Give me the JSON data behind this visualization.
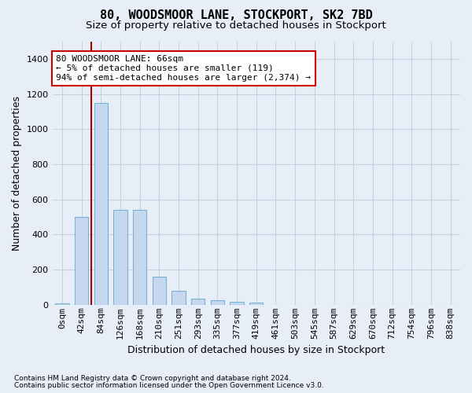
{
  "title": "80, WOODSMOOR LANE, STOCKPORT, SK2 7BD",
  "subtitle": "Size of property relative to detached houses in Stockport",
  "xlabel": "Distribution of detached houses by size in Stockport",
  "ylabel": "Number of detached properties",
  "bin_labels": [
    "0sqm",
    "42sqm",
    "84sqm",
    "126sqm",
    "168sqm",
    "210sqm",
    "251sqm",
    "293sqm",
    "335sqm",
    "377sqm",
    "419sqm",
    "461sqm",
    "503sqm",
    "545sqm",
    "587sqm",
    "629sqm",
    "670sqm",
    "712sqm",
    "754sqm",
    "796sqm",
    "838sqm"
  ],
  "bar_values": [
    10,
    500,
    1150,
    540,
    540,
    160,
    80,
    35,
    28,
    18,
    15,
    0,
    0,
    0,
    0,
    0,
    0,
    0,
    0,
    0,
    0
  ],
  "bar_color": "#c5d8f0",
  "bar_edge_color": "#7ab2d4",
  "bar_width": 0.7,
  "vline_pos": 1.5,
  "vline_color": "#aa0000",
  "ylim_max": 1500,
  "yticks": [
    0,
    200,
    400,
    600,
    800,
    1000,
    1200,
    1400
  ],
  "annotation_text": "80 WOODSMOOR LANE: 66sqm\n← 5% of detached houses are smaller (119)\n94% of semi-detached houses are larger (2,374) →",
  "annotation_box_facecolor": "#ffffff",
  "annotation_box_edgecolor": "#cc0000",
  "footnote1": "Contains HM Land Registry data © Crown copyright and database right 2024.",
  "footnote2": "Contains public sector information licensed under the Open Government Licence v3.0.",
  "bg_color": "#e8eef8",
  "plot_bg_color": "#e8eef8",
  "grid_color": "#c8d0e0",
  "title_fontsize": 11,
  "subtitle_fontsize": 9.5,
  "axis_label_fontsize": 9,
  "tick_fontsize": 8,
  "annotation_fontsize": 8,
  "footnote_fontsize": 6.5
}
